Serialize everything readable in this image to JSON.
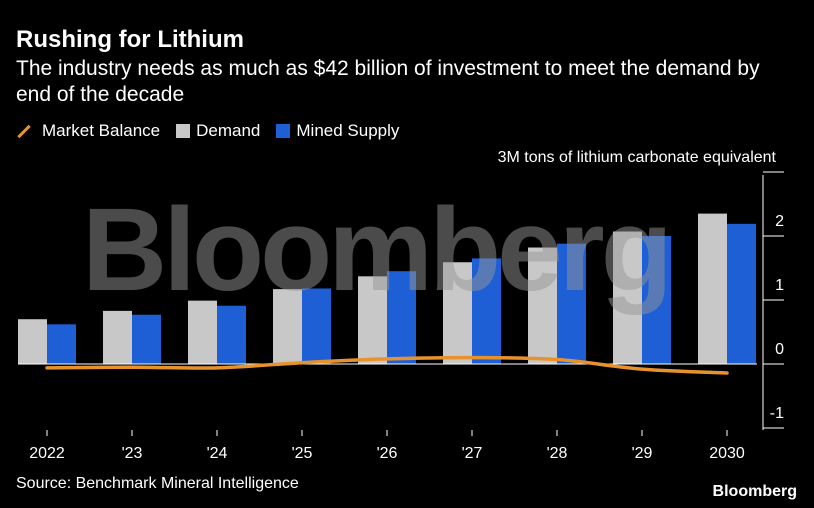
{
  "title": "Rushing for Lithium",
  "subtitle": "The industry needs as much as $42 billion of investment to meet the demand by end of the decade",
  "legend": {
    "market_balance": "Market Balance",
    "demand": "Demand",
    "mined_supply": "Mined Supply"
  },
  "unit_label": "3M tons of lithium carbonate equivalent",
  "source": "Source: Benchmark Mineral Intelligence",
  "brand": "Bloomberg",
  "watermark": "Bloomberg",
  "colors": {
    "demand": "#c8c8c8",
    "mined_supply": "#1f5fd6",
    "market_balance": "#e8922e"
  },
  "chart_data": {
    "type": "bar",
    "categories": [
      "2022",
      "'23",
      "'24",
      "'25",
      "'26",
      "'27",
      "'28",
      "'29",
      "2030"
    ],
    "series": [
      {
        "name": "Demand",
        "values": [
          0.7,
          0.83,
          0.99,
          1.17,
          1.37,
          1.59,
          1.82,
          2.07,
          2.35
        ]
      },
      {
        "name": "Mined Supply",
        "values": [
          0.62,
          0.77,
          0.91,
          1.18,
          1.45,
          1.65,
          1.88,
          2.0,
          2.19
        ]
      },
      {
        "name": "Market Balance",
        "type": "line",
        "values": [
          -0.06,
          -0.05,
          -0.06,
          0.02,
          0.08,
          0.1,
          0.07,
          -0.08,
          -0.14
        ]
      }
    ],
    "y_ticks": [
      "-1",
      "0",
      "1",
      "2"
    ],
    "ylim": [
      -1,
      3
    ],
    "grid": false,
    "legend_position": "top-left"
  }
}
